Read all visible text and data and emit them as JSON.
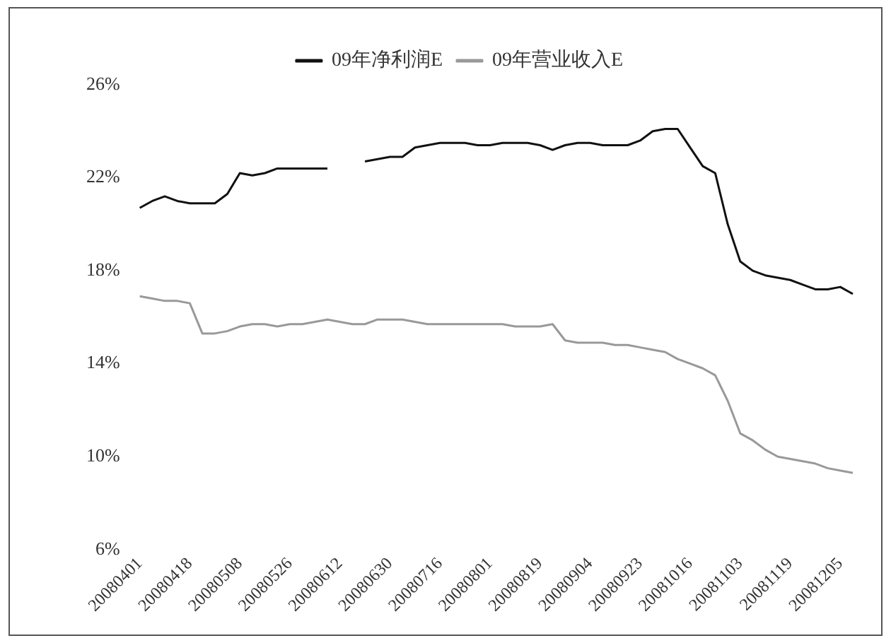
{
  "chart_data": {
    "type": "line",
    "categories": [
      "20080401",
      null,
      null,
      null,
      "20080418",
      null,
      null,
      null,
      "20080508",
      null,
      null,
      null,
      "20080526",
      null,
      null,
      null,
      "20080612",
      null,
      null,
      null,
      "20080630",
      null,
      null,
      null,
      "20080716",
      null,
      null,
      null,
      "20080801",
      null,
      null,
      null,
      "20080819",
      null,
      null,
      null,
      "20080904",
      null,
      null,
      null,
      "20080923",
      null,
      null,
      null,
      "20081016",
      null,
      null,
      null,
      "20081103",
      null,
      null,
      null,
      "20081119",
      null,
      null,
      null,
      "20081205",
      null
    ],
    "series": [
      {
        "name": "09年净利润E",
        "color": "#111111",
        "values": [
          20.7,
          21.0,
          21.2,
          21.0,
          20.9,
          20.9,
          20.9,
          21.3,
          22.2,
          22.1,
          22.2,
          22.4,
          22.4,
          22.4,
          22.4,
          22.4,
          null,
          null,
          22.7,
          22.8,
          22.9,
          22.9,
          23.3,
          23.4,
          23.5,
          23.5,
          23.5,
          23.4,
          23.4,
          23.5,
          23.5,
          23.5,
          23.4,
          23.2,
          23.4,
          23.5,
          23.5,
          23.4,
          23.4,
          23.4,
          23.6,
          24.0,
          24.1,
          24.1,
          23.3,
          22.5,
          22.2,
          20.0,
          18.4,
          18.0,
          17.8,
          17.7,
          17.6,
          17.4,
          17.2,
          17.2,
          17.3,
          17.0
        ]
      },
      {
        "name": "09年营业收入E",
        "color": "#999999",
        "values": [
          16.9,
          16.8,
          16.7,
          16.7,
          16.6,
          15.3,
          15.3,
          15.4,
          15.6,
          15.7,
          15.7,
          15.6,
          15.7,
          15.7,
          15.8,
          15.9,
          15.8,
          15.7,
          15.7,
          15.9,
          15.9,
          15.9,
          15.8,
          15.7,
          15.7,
          15.7,
          15.7,
          15.7,
          15.7,
          15.7,
          15.6,
          15.6,
          15.6,
          15.7,
          15.0,
          14.9,
          14.9,
          14.9,
          14.8,
          14.8,
          14.7,
          14.6,
          14.5,
          14.2,
          14.0,
          13.8,
          13.5,
          12.4,
          11.0,
          10.7,
          10.3,
          10.0,
          9.9,
          9.8,
          9.7,
          9.5,
          9.4,
          9.3
        ]
      }
    ],
    "ylim": [
      6,
      26
    ],
    "yticks": [
      {
        "value": 6,
        "label": "6%"
      },
      {
        "value": 10,
        "label": "10%"
      },
      {
        "value": 14,
        "label": "14%"
      },
      {
        "value": 18,
        "label": "18%"
      },
      {
        "value": 22,
        "label": "22%"
      },
      {
        "value": 26,
        "label": "26%"
      }
    ],
    "grid": false,
    "legend": "top",
    "marker": "none",
    "line_style": "solid"
  }
}
